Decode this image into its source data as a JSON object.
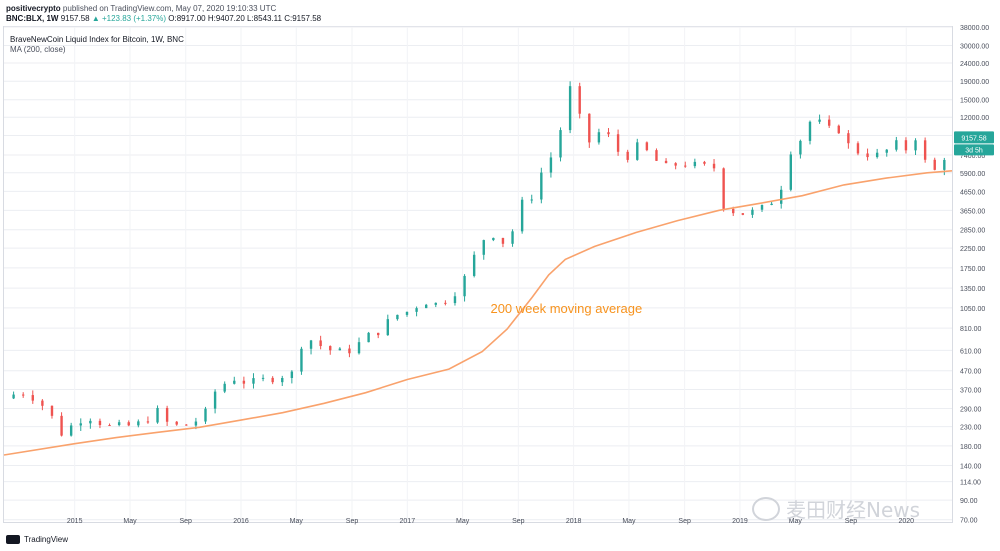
{
  "header": {
    "author": "positivecrypto",
    "published_text": "published on TradingView.com, May 07, 2020 19:10:33 UTC",
    "symbol": "BNC:BLX, 1W",
    "last": "9157.58",
    "change": "▲ +123.83 (+1.37%)",
    "ohlc": "O:8917.00 H:9407.20 L:8543.11 C:9157.58"
  },
  "chart_title": "BraveNewCoin Liquid Index for Bitcoin, 1W, BNC",
  "ma_label": "MA (200, close)",
  "price_tag": "9157.58",
  "countdown_tag": "3d 5h",
  "annotation": "200 week moving average",
  "footer": {
    "brand": "TradingView"
  },
  "watermark": "麦田财经News",
  "colors": {
    "up": "#26a69a",
    "down": "#ef5350",
    "ma": "#f9a26c",
    "tag": "#26a69a",
    "annotation": "#f7931e"
  },
  "chart_data": {
    "type": "candlestick",
    "title": "BraveNewCoin Liquid Index for Bitcoin, 1W, BNC",
    "y_scale": "log",
    "ylim": [
      68,
      38000
    ],
    "y_ticks": [
      38000,
      30000,
      24000,
      19000,
      15000,
      12000,
      9500,
      7400,
      5900,
      4650,
      3650,
      2850,
      2250,
      1750,
      1350,
      1050,
      810,
      610,
      470,
      370,
      290,
      230,
      180,
      140,
      114,
      90,
      70
    ],
    "x_ticks": [
      "2015",
      "May",
      "Sep",
      "2016",
      "May",
      "Sep",
      "2017",
      "May",
      "Sep",
      "2018",
      "May",
      "Sep",
      "2019",
      "May",
      "Sep",
      "2020",
      "May",
      "Sep"
    ],
    "x_range_months": [
      -1.7,
      21.1
    ],
    "x_tick_months": [
      0,
      1.33,
      2.67,
      4,
      5.33,
      6.67,
      8,
      9.33,
      10.67,
      12,
      13.33,
      14.67,
      16,
      17.33,
      18.67,
      20,
      21.33,
      22.67
    ],
    "price_path": [
      [
        -1.7,
        330
      ],
      [
        -1.3,
        360
      ],
      [
        -0.9,
        330
      ],
      [
        -0.55,
        260
      ],
      [
        -0.25,
        200
      ],
      [
        0.0,
        250
      ],
      [
        0.4,
        260
      ],
      [
        0.8,
        230
      ],
      [
        1.2,
        230
      ],
      [
        1.6,
        240
      ],
      [
        2.0,
        280
      ],
      [
        2.3,
        230
      ],
      [
        2.7,
        235
      ],
      [
        3.1,
        260
      ],
      [
        3.4,
        370
      ],
      [
        3.8,
        430
      ],
      [
        4.2,
        400
      ],
      [
        4.6,
        420
      ],
      [
        4.9,
        440
      ],
      [
        5.3,
        455
      ],
      [
        5.5,
        740
      ],
      [
        5.9,
        650
      ],
      [
        6.3,
        590
      ],
      [
        6.7,
        620
      ],
      [
        7.0,
        720
      ],
      [
        7.3,
        780
      ],
      [
        7.7,
        950
      ],
      [
        8.0,
        1000
      ],
      [
        8.4,
        1150
      ],
      [
        8.7,
        1100
      ],
      [
        9.0,
        1200
      ],
      [
        9.3,
        1400
      ],
      [
        9.6,
        2000
      ],
      [
        9.9,
        2700
      ],
      [
        10.2,
        2700
      ],
      [
        10.4,
        2200
      ],
      [
        10.6,
        3200
      ],
      [
        10.8,
        4200
      ],
      [
        11.0,
        4400
      ],
      [
        11.2,
        5800
      ],
      [
        11.5,
        7500
      ],
      [
        11.75,
        11500
      ],
      [
        11.9,
        17800
      ],
      [
        12.0,
        14500
      ],
      [
        12.2,
        11000
      ],
      [
        12.4,
        8500
      ],
      [
        12.7,
        10500
      ],
      [
        13.0,
        8200
      ],
      [
        13.2,
        7000
      ],
      [
        13.6,
        8500
      ],
      [
        13.9,
        7100
      ],
      [
        14.2,
        6300
      ],
      [
        14.6,
        6700
      ],
      [
        15.0,
        6400
      ],
      [
        15.4,
        6300
      ],
      [
        15.55,
        4000
      ],
      [
        15.75,
        3700
      ],
      [
        16.0,
        3500
      ],
      [
        16.4,
        3600
      ],
      [
        16.7,
        3900
      ],
      [
        17.0,
        5000
      ],
      [
        17.2,
        7800
      ],
      [
        17.45,
        9000
      ],
      [
        17.7,
        11500
      ],
      [
        17.9,
        11200
      ],
      [
        18.1,
        10200
      ],
      [
        18.4,
        10300
      ],
      [
        18.6,
        8400
      ],
      [
        18.9,
        7600
      ],
      [
        19.1,
        7500
      ],
      [
        19.4,
        7300
      ],
      [
        19.7,
        8600
      ],
      [
        20.0,
        8000
      ],
      [
        20.1,
        9600
      ],
      [
        20.3,
        9200
      ],
      [
        20.45,
        6800
      ],
      [
        20.6,
        5600
      ],
      [
        20.8,
        6700
      ],
      [
        21.0,
        7700
      ],
      [
        21.1,
        9157.58
      ]
    ],
    "series": [
      {
        "name": "MA (200, close)",
        "points": [
          [
            -1.7,
            160
          ],
          [
            0,
            185
          ],
          [
            1,
            200
          ],
          [
            2,
            214
          ],
          [
            3,
            228
          ],
          [
            4,
            250
          ],
          [
            5,
            275
          ],
          [
            6,
            310
          ],
          [
            7,
            355
          ],
          [
            8,
            420
          ],
          [
            9,
            480
          ],
          [
            9.8,
            600
          ],
          [
            10.4,
            800
          ],
          [
            11,
            1200
          ],
          [
            11.4,
            1600
          ],
          [
            11.8,
            1950
          ],
          [
            12.5,
            2300
          ],
          [
            13.5,
            2750
          ],
          [
            14.5,
            3200
          ],
          [
            15.5,
            3650
          ],
          [
            16.5,
            4000
          ],
          [
            17.5,
            4400
          ],
          [
            18.5,
            5050
          ],
          [
            19.5,
            5500
          ],
          [
            20.5,
            5900
          ],
          [
            21.1,
            6050
          ]
        ]
      }
    ],
    "annotation": {
      "text": "200 week moving average",
      "x_month": 10.0,
      "y_price": 1050
    },
    "last_price": 9157.58
  }
}
